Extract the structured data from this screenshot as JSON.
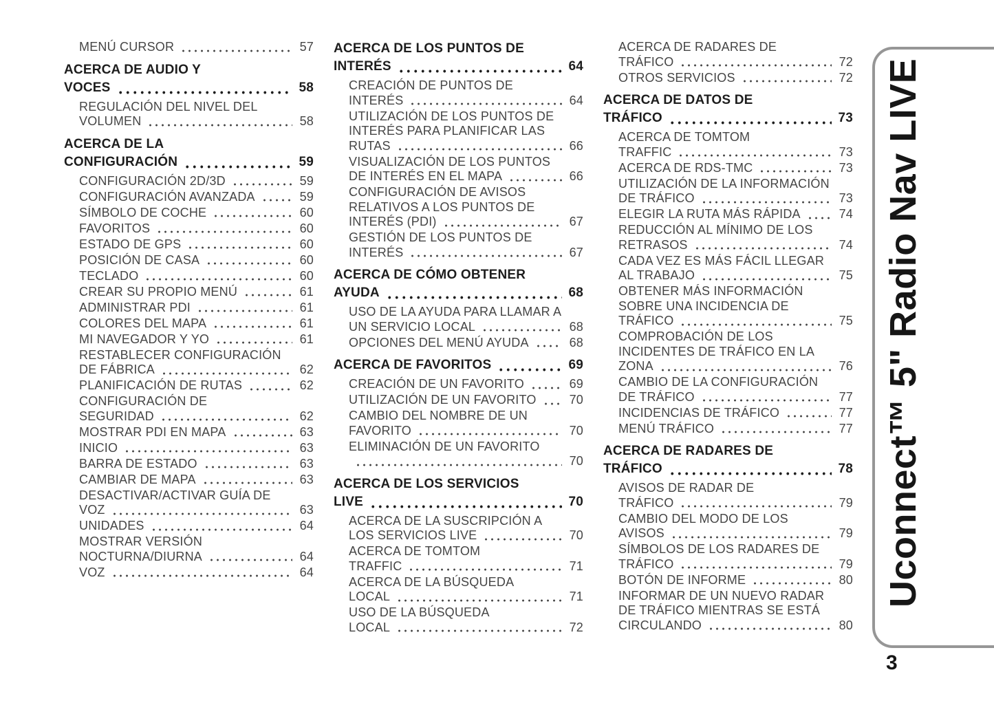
{
  "document": {
    "page_number": "3",
    "side_tab_title": "Uconnect™ 5\" Radio Nav LIVE"
  },
  "colors": {
    "sub_text": "#454545",
    "heading_text": "#1d1d1d",
    "tab_border": "#969696"
  },
  "toc_columns": [
    {
      "entries": [
        {
          "type": "sub",
          "label": "MENÚ CURSOR",
          "page": "57"
        },
        {
          "type": "heading",
          "label": "ACERCA DE AUDIO Y\nVOCES",
          "page": "58"
        },
        {
          "type": "sub",
          "label": "REGULACIÓN DEL NIVEL DEL\nVOLUMEN",
          "page": "58"
        },
        {
          "type": "heading",
          "label": "ACERCA DE LA\nCONFIGURACIÓN",
          "page": "59"
        },
        {
          "type": "sub",
          "label": "CONFIGURACIÓN 2D/3D",
          "page": "59"
        },
        {
          "type": "sub",
          "label": "CONFIGURACIÓN AVANZADA",
          "page": "59"
        },
        {
          "type": "sub",
          "label": "SÍMBOLO DE COCHE",
          "page": "60"
        },
        {
          "type": "sub",
          "label": "FAVORITOS",
          "page": "60"
        },
        {
          "type": "sub",
          "label": "ESTADO DE GPS",
          "page": "60"
        },
        {
          "type": "sub",
          "label": "POSICIÓN DE CASA",
          "page": "60"
        },
        {
          "type": "sub",
          "label": "TECLADO",
          "page": "60"
        },
        {
          "type": "sub",
          "label": "CREAR SU PROPIO MENÚ",
          "page": "61"
        },
        {
          "type": "sub",
          "label": "ADMINISTRAR PDI",
          "page": "61"
        },
        {
          "type": "sub",
          "label": "COLORES DEL MAPA",
          "page": "61"
        },
        {
          "type": "sub",
          "label": "MI NAVEGADOR Y YO",
          "page": "61"
        },
        {
          "type": "sub",
          "label": "RESTABLECER CONFIGURACIÓN\nDE FÁBRICA",
          "page": "62"
        },
        {
          "type": "sub",
          "label": "PLANIFICACIÓN DE RUTAS",
          "page": "62"
        },
        {
          "type": "sub",
          "label": "CONFIGURACIÓN DE\nSEGURIDAD",
          "page": "62"
        },
        {
          "type": "sub",
          "label": "MOSTRAR PDI EN MAPA",
          "page": "63"
        },
        {
          "type": "sub",
          "label": "INICIO",
          "page": "63"
        },
        {
          "type": "sub",
          "label": "BARRA DE ESTADO",
          "page": "63"
        },
        {
          "type": "sub",
          "label": "CAMBIAR DE MAPA",
          "page": "63"
        },
        {
          "type": "sub",
          "label": "DESACTIVAR/ACTIVAR GUÍA DE\nVOZ",
          "page": "63"
        },
        {
          "type": "sub",
          "label": "UNIDADES",
          "page": "64"
        },
        {
          "type": "sub",
          "label": "MOSTRAR VERSIÓN\nNOCTURNA/DIURNA",
          "page": "64"
        },
        {
          "type": "sub",
          "label": "VOZ",
          "page": "64"
        }
      ]
    },
    {
      "entries": [
        {
          "type": "heading",
          "label": "ACERCA DE LOS PUNTOS DE\nINTERÉS",
          "page": "64"
        },
        {
          "type": "sub",
          "label": "CREACIÓN DE PUNTOS DE\nINTERÉS",
          "page": "64"
        },
        {
          "type": "sub",
          "label": "UTILIZACIÓN DE LOS PUNTOS DE\nINTERÉS PARA PLANIFICAR LAS\nRUTAS",
          "page": "66"
        },
        {
          "type": "sub",
          "label": "VISUALIZACIÓN DE LOS PUNTOS\nDE INTERÉS EN EL MAPA",
          "page": "66"
        },
        {
          "type": "sub",
          "label": "CONFIGURACIÓN DE AVISOS\nRELATIVOS A LOS PUNTOS DE\nINTERÉS (PDI)",
          "page": "67"
        },
        {
          "type": "sub",
          "label": "GESTIÓN DE LOS PUNTOS DE\nINTERÉS",
          "page": "67"
        },
        {
          "type": "heading",
          "label": "ACERCA DE CÓMO OBTENER\nAYUDA",
          "page": "68"
        },
        {
          "type": "sub",
          "label": "USO DE LA AYUDA PARA LLAMAR A\nUN SERVICIO LOCAL",
          "page": "68"
        },
        {
          "type": "sub",
          "label": "OPCIONES DEL MENÚ AYUDA",
          "page": "68"
        },
        {
          "type": "heading",
          "label": "ACERCA DE FAVORITOS",
          "page": "69"
        },
        {
          "type": "sub",
          "label": "CREACIÓN DE UN FAVORITO",
          "page": "69"
        },
        {
          "type": "sub",
          "label": "UTILIZACIÓN DE UN FAVORITO",
          "page": "70"
        },
        {
          "type": "sub",
          "label": "CAMBIO DEL NOMBRE DE UN\nFAVORITO",
          "page": "70"
        },
        {
          "type": "sub",
          "label": "ELIMINACIÓN DE UN FAVORITO\n",
          "page": "70"
        },
        {
          "type": "heading",
          "label": "ACERCA DE LOS SERVICIOS\nLIVE",
          "page": "70"
        },
        {
          "type": "sub",
          "label": "ACERCA DE LA SUSCRIPCIÓN A\nLOS SERVICIOS LIVE",
          "page": "70"
        },
        {
          "type": "sub",
          "label": "ACERCA DE TOMTOM\nTRAFFIC",
          "page": "71"
        },
        {
          "type": "sub",
          "label": "ACERCA DE LA BÚSQUEDA\nLOCAL",
          "page": "71"
        },
        {
          "type": "sub",
          "label": "USO DE LA BÚSQUEDA\nLOCAL",
          "page": "72"
        }
      ]
    },
    {
      "entries": [
        {
          "type": "sub",
          "label": "ACERCA DE RADARES DE\nTRÁFICO",
          "page": "72"
        },
        {
          "type": "sub",
          "label": "OTROS SERVICIOS",
          "page": "72"
        },
        {
          "type": "heading",
          "label": "ACERCA DE DATOS DE\nTRÁFICO",
          "page": "73"
        },
        {
          "type": "sub",
          "label": "ACERCA DE TOMTOM\nTRAFFIC",
          "page": "73"
        },
        {
          "type": "sub",
          "label": "ACERCA DE RDS-TMC",
          "page": "73"
        },
        {
          "type": "sub",
          "label": "UTILIZACIÓN DE LA INFORMACIÓN\nDE TRÁFICO",
          "page": "73"
        },
        {
          "type": "sub",
          "label": "ELEGIR LA RUTA MÁS RÁPIDA",
          "page": "74"
        },
        {
          "type": "sub",
          "label": "REDUCCIÓN AL MÍNIMO DE LOS\nRETRASOS",
          "page": "74"
        },
        {
          "type": "sub",
          "label": "CADA VEZ ES MÁS FÁCIL LLEGAR\nAL TRABAJO",
          "page": "75"
        },
        {
          "type": "sub",
          "label": "OBTENER MÁS INFORMACIÓN\nSOBRE UNA INCIDENCIA DE\nTRÁFICO",
          "page": "75"
        },
        {
          "type": "sub",
          "label": "COMPROBACIÓN DE LOS\nINCIDENTES DE TRÁFICO EN LA\nZONA",
          "page": "76"
        },
        {
          "type": "sub",
          "label": "CAMBIO DE LA CONFIGURACIÓN\nDE TRÁFICO",
          "page": "77"
        },
        {
          "type": "sub",
          "label": "INCIDENCIAS DE TRÁFICO",
          "page": "77"
        },
        {
          "type": "sub",
          "label": "MENÚ TRÁFICO",
          "page": "77"
        },
        {
          "type": "heading",
          "label": "ACERCA DE RADARES DE\nTRÁFICO",
          "page": "78"
        },
        {
          "type": "sub",
          "label": "AVISOS DE RADAR DE\nTRÁFICO",
          "page": "79"
        },
        {
          "type": "sub",
          "label": "CAMBIO DEL MODO DE LOS\nAVISOS",
          "page": "79"
        },
        {
          "type": "sub",
          "label": "SÍMBOLOS DE LOS RADARES DE\nTRÁFICO",
          "page": "79"
        },
        {
          "type": "sub",
          "label": "BOTÓN DE INFORME",
          "page": "80"
        },
        {
          "type": "sub",
          "label": "INFORMAR DE UN NUEVO RADAR\nDE TRÁFICO MIENTRAS SE ESTÁ\nCIRCULANDO",
          "page": "80"
        }
      ]
    }
  ]
}
